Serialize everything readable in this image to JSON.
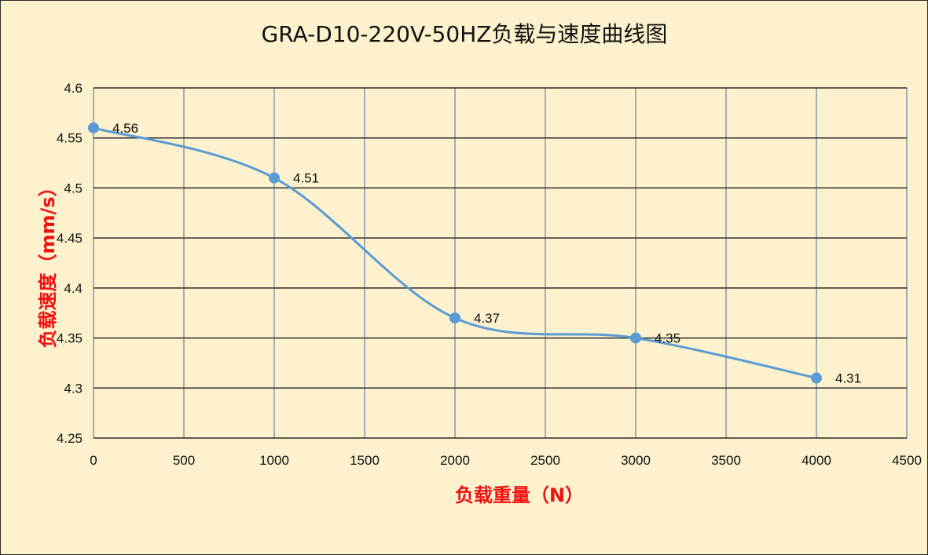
{
  "chart_data": {
    "type": "line",
    "title": "GRA-D10-220V-50HZ负载与速度曲线图",
    "xlabel": "负载重量（N）",
    "ylabel": "负载速度（mm/s）",
    "x": [
      0,
      1000,
      2000,
      3000,
      4000
    ],
    "series": [
      {
        "values": [
          4.56,
          4.51,
          4.37,
          4.35,
          4.31
        ]
      }
    ],
    "data_labels": [
      "4.56",
      "4.51",
      "4.37",
      "4.35",
      "4.31"
    ],
    "xlim": [
      0,
      4500
    ],
    "ylim": [
      4.25,
      4.6
    ],
    "x_ticks": [
      "0",
      "500",
      "1000",
      "1500",
      "2000",
      "2500",
      "3000",
      "3500",
      "4000",
      "4500"
    ],
    "y_ticks": [
      "4.25",
      "4.3",
      "4.35",
      "4.4",
      "4.45",
      "4.5",
      "4.55",
      "4.6"
    ],
    "smooth": true,
    "grid": true,
    "legend": "none",
    "colors": {
      "line": "#5b9bd5",
      "marker": "#5b9bd5",
      "axis_title": "#ee1111",
      "background": "#fdf2cd",
      "vertical_grid": "#8497b0",
      "horizontal_grid": "#2b2b2b"
    }
  }
}
